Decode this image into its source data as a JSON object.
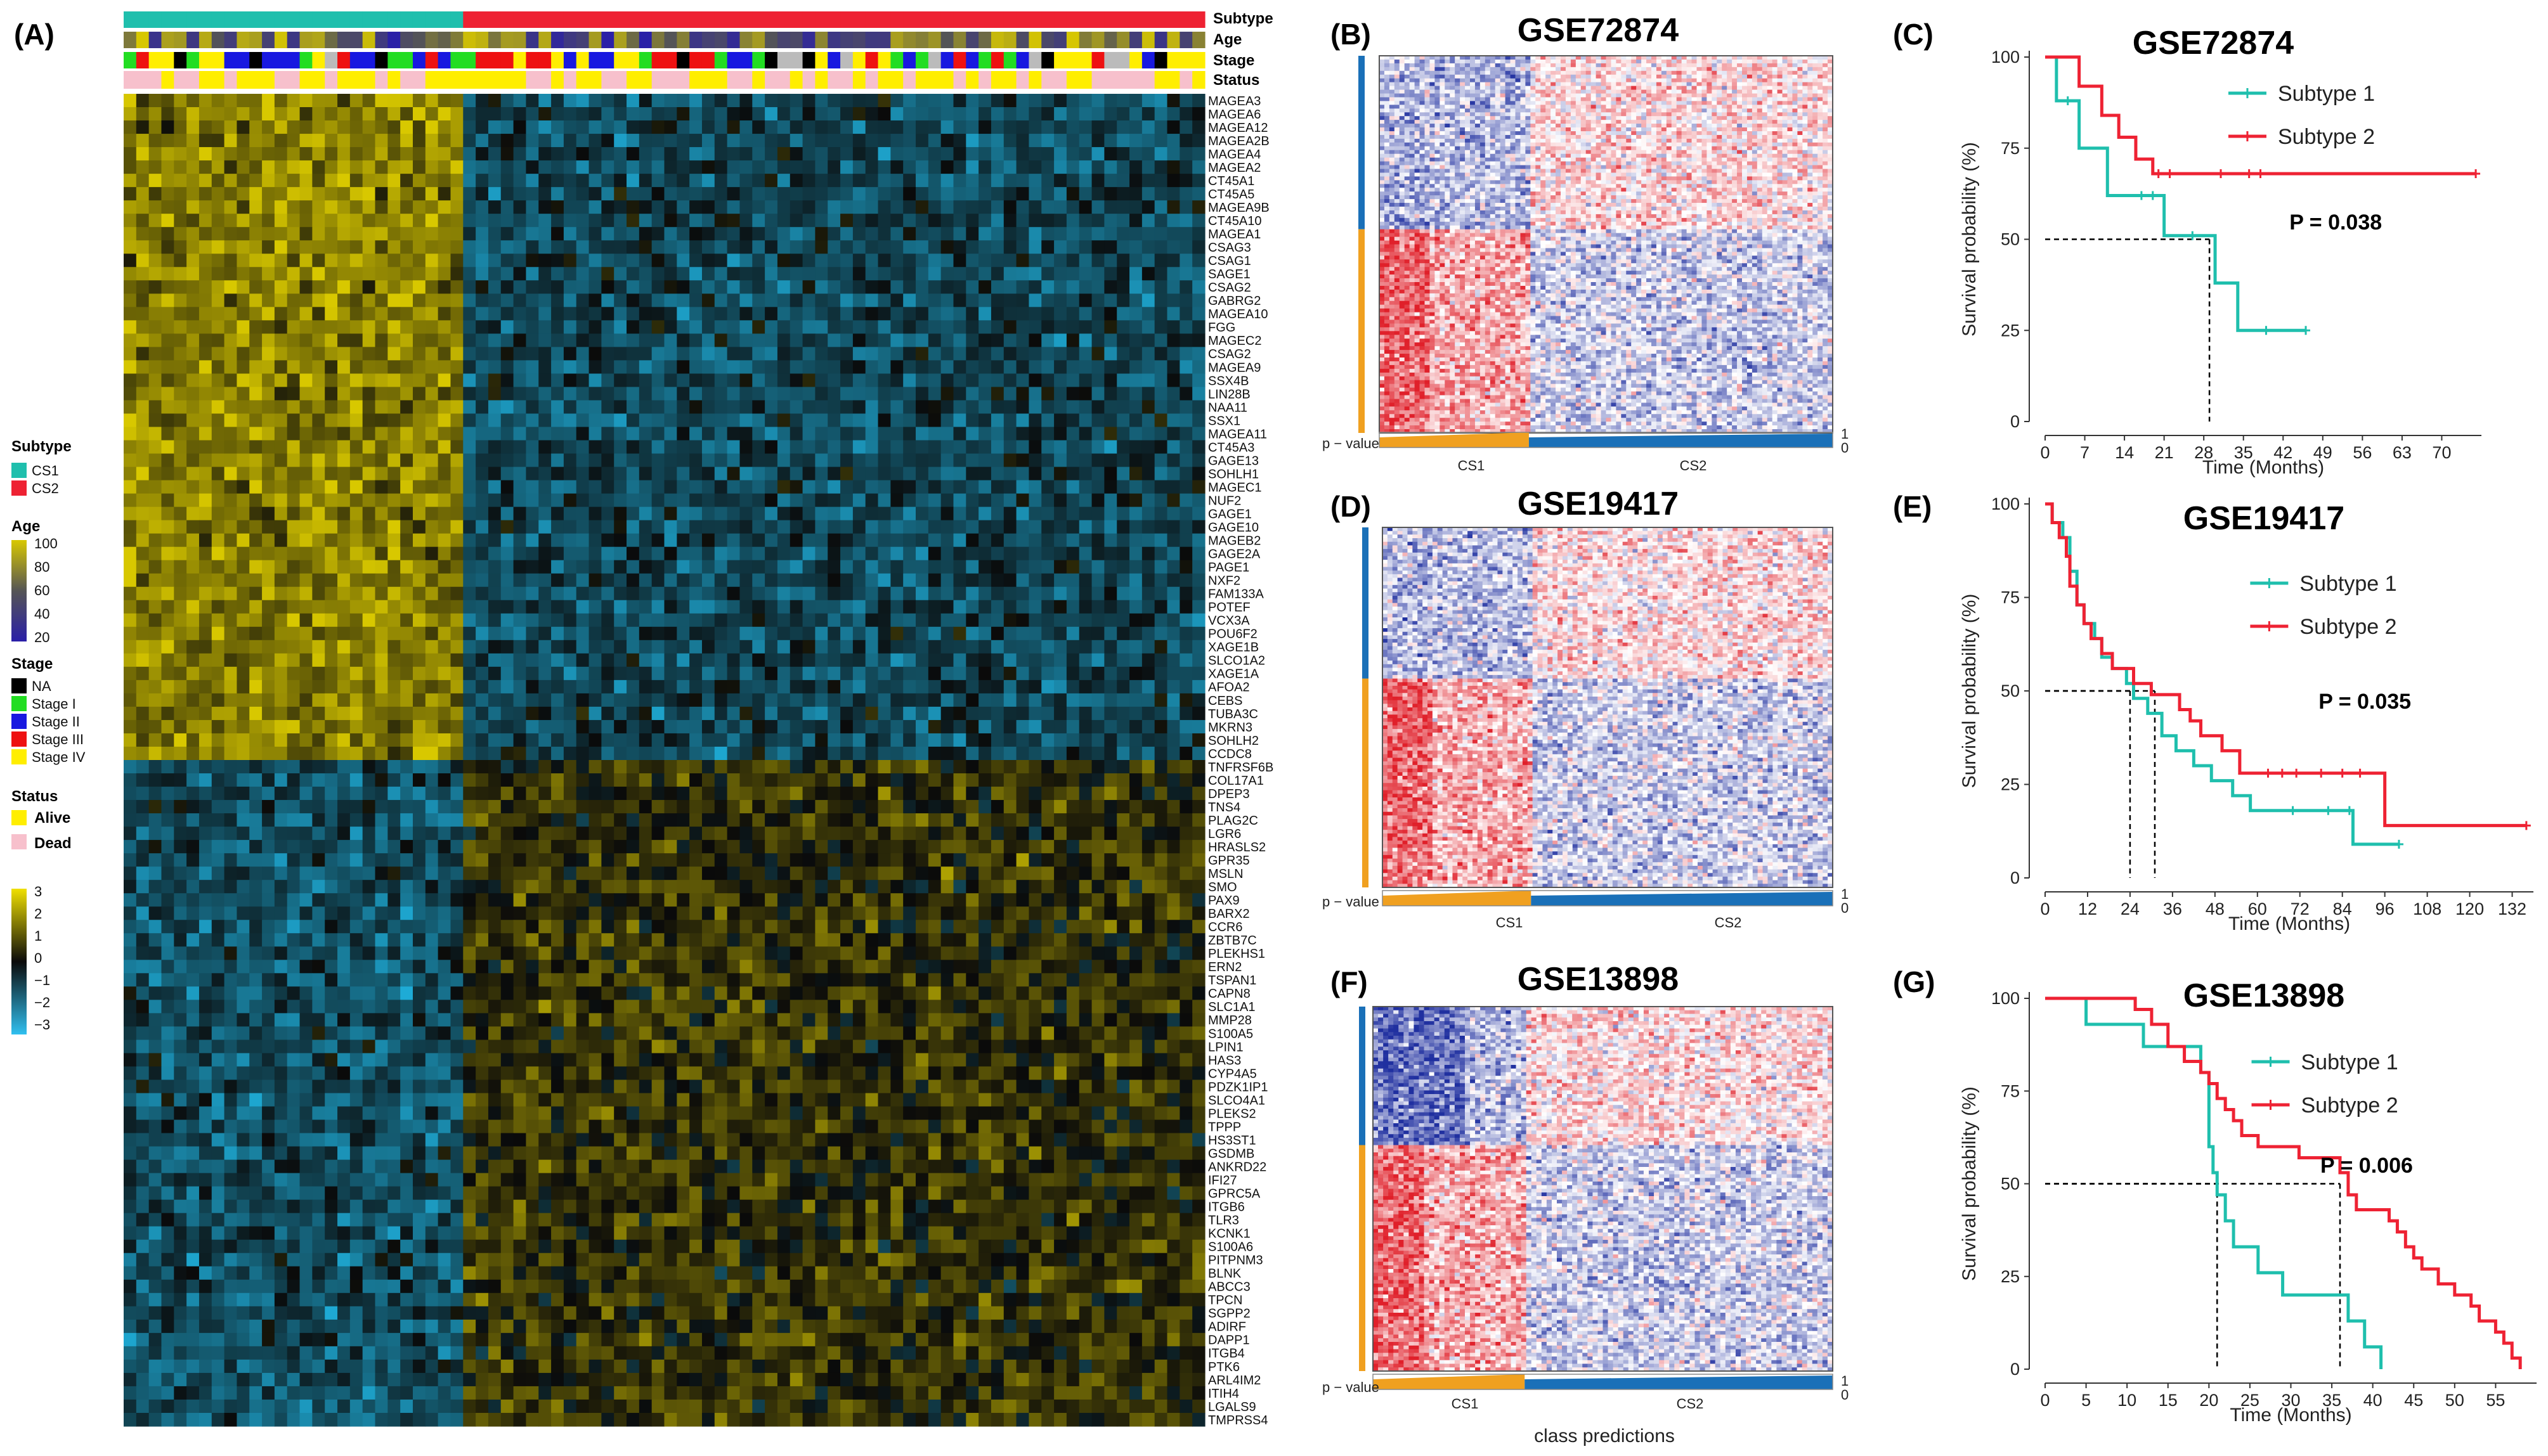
{
  "panel_labels": [
    "(A)",
    "(B)",
    "(C)",
    "(D)",
    "(E)",
    "(F)",
    "(G)"
  ],
  "heatmap_A": {
    "annotation_labels": [
      "Subtype",
      "Age",
      "Stage",
      "Status"
    ],
    "n_samples_cs1": 27,
    "n_samples_cs2": 59,
    "genes": [
      "MAGEA3",
      "MAGEA6",
      "MAGEA12",
      "MAGEA2B",
      "MAGEA4",
      "MAGEA2",
      "CT45A1",
      "CT45A5",
      "MAGEA9B",
      "CT45A10",
      "MAGEA1",
      "CSAG3",
      "CSAG1",
      "SAGE1",
      "CSAG2",
      "GABRG2",
      "MAGEA10",
      "FGG",
      "MAGEC2",
      "CSAG2",
      "MAGEA9",
      "SSX4B",
      "LIN28B",
      "NAA11",
      "SSX1",
      "MAGEA11",
      "CT45A3",
      "GAGE13",
      "SOHLH1",
      "MAGEC1",
      "NUF2",
      "GAGE1",
      "GAGE10",
      "MAGEB2",
      "GAGE2A",
      "PAGE1",
      "NXF2",
      "FAM133A",
      "POTEF",
      "VCX3A",
      "POU6F2",
      "XAGE1B",
      "SLCO1A2",
      "XAGE1A",
      "AFOA2",
      "CEBS",
      "TUBA3C",
      "MKRN3",
      "SOHLH2",
      "CCDC8",
      "TNFRSF6B",
      "COL17A1",
      "DPEP3",
      "TNS4",
      "PLAG2C",
      "LGR6",
      "HRASLS2",
      "GPR35",
      "MSLN",
      "SMO",
      "PAX9",
      "BARX2",
      "CCR6",
      "ZBTB7C",
      "PLEKHS1",
      "ERN2",
      "TSPAN1",
      "CAPN8",
      "SLC1A1",
      "MMP28",
      "S100A5",
      "LPIN1",
      "HAS3",
      "CYP4A5",
      "PDZK1IP1",
      "SLCO4A1",
      "PLEKS2",
      "TPPP",
      "HS3ST1",
      "GSDMB",
      "ANKRD22",
      "IFI27",
      "GPRC5A",
      "ITGB6",
      "TLR3",
      "KCNK1",
      "S100A6",
      "PITPNM3",
      "BLNK",
      "ABCC3",
      "TPCN",
      "SGPP2",
      "ADIRF",
      "DAPP1",
      "ITGB4",
      "PTK6",
      "ARL4IM2",
      "ITIH4",
      "LGALS9",
      "TMPRSS4"
    ],
    "legend": {
      "subtype": {
        "title": "Subtype",
        "items": [
          "CS1",
          "CS2"
        ]
      },
      "age": {
        "title": "Age",
        "ticks": [
          "100",
          "80",
          "60",
          "40",
          "20"
        ]
      },
      "stage": {
        "title": "Stage",
        "items": [
          "NA",
          "Stage I",
          "Stage II",
          "Stage III",
          "Stage IV"
        ]
      },
      "status": {
        "title": "Status",
        "items": [
          "Alive",
          "Dead"
        ]
      },
      "expression": {
        "ticks": [
          "3",
          "2",
          "1",
          "0",
          "−1",
          "−2",
          "−3"
        ]
      }
    }
  },
  "ntp_panels": [
    {
      "id": "B",
      "title": "GSE72874",
      "pvalue_label": "p − value",
      "class_labels": [
        "CS1",
        "CS2"
      ],
      "scale_ticks": [
        "1",
        "0"
      ]
    },
    {
      "id": "D",
      "title": "GSE19417",
      "pvalue_label": "p − value",
      "class_labels": [
        "CS1",
        "CS2"
      ],
      "scale_ticks": [
        "1",
        "0"
      ]
    },
    {
      "id": "F",
      "title": "GSE13898",
      "pvalue_label": "p − value",
      "class_labels": [
        "CS1",
        "CS2"
      ],
      "scale_ticks": [
        "1",
        "0"
      ]
    }
  ],
  "ntp_xlabel": "class predictions",
  "colors": {
    "cs1": "#1fbfad",
    "cs2": "#ee2233",
    "heat_high": "#d8c800",
    "heat_mid": "#0a0a0a",
    "heat_low": "#1fb3e0",
    "ntp_high": "#e0202a",
    "ntp_low": "#2030a0",
    "ntp_cs1_bar": "#f0a020",
    "ntp_cs2_bar": "#1a70b8"
  },
  "chart_data": [
    {
      "id": "C",
      "type": "line",
      "title": "GSE72874",
      "xlabel": "Time (Months)",
      "ylabel": "Survival probability (%)",
      "xlim": [
        0,
        77
      ],
      "ylim": [
        0,
        100
      ],
      "xticks": [
        0,
        7,
        14,
        21,
        28,
        35,
        42,
        49,
        56,
        63,
        70
      ],
      "yticks": [
        0,
        25,
        50,
        75,
        100
      ],
      "pvalue": "P = 0.038",
      "median_guides": [
        {
          "x": 29,
          "y": 50
        }
      ],
      "series": [
        {
          "name": "Subtype 1",
          "color": "#1fbfad",
          "steps": [
            [
              0,
              100
            ],
            [
              2,
              88
            ],
            [
              5,
              88
            ],
            [
              6,
              75
            ],
            [
              10,
              75
            ],
            [
              11,
              62
            ],
            [
              20,
              62
            ],
            [
              21,
              51
            ],
            [
              26,
              51
            ],
            [
              29,
              51
            ],
            [
              30,
              38
            ],
            [
              33,
              38
            ],
            [
              34,
              25
            ],
            [
              46,
              25
            ]
          ],
          "censor": [
            [
              4,
              88
            ],
            [
              17,
              62
            ],
            [
              19,
              62
            ],
            [
              26,
              51
            ],
            [
              39,
              25
            ],
            [
              46,
              25
            ]
          ]
        },
        {
          "name": "Subtype 2",
          "color": "#ee2233",
          "steps": [
            [
              0,
              100
            ],
            [
              5,
              100
            ],
            [
              6,
              92
            ],
            [
              9,
              92
            ],
            [
              10,
              84
            ],
            [
              12,
              84
            ],
            [
              13,
              78
            ],
            [
              15,
              78
            ],
            [
              16,
              72
            ],
            [
              18,
              72
            ],
            [
              19,
              68
            ],
            [
              76,
              68
            ]
          ],
          "censor": [
            [
              20,
              68
            ],
            [
              22,
              68
            ],
            [
              31,
              68
            ],
            [
              36,
              68
            ],
            [
              38,
              68
            ],
            [
              76,
              68
            ]
          ]
        }
      ]
    },
    {
      "id": "E",
      "type": "line",
      "title": "GSE19417",
      "xlabel": "Time (Months)",
      "ylabel": "Survival probability (%)",
      "xlim": [
        0,
        138
      ],
      "ylim": [
        0,
        100
      ],
      "xticks": [
        0,
        12,
        24,
        36,
        48,
        60,
        72,
        84,
        96,
        108,
        120,
        132
      ],
      "yticks": [
        0,
        25,
        50,
        75,
        100
      ],
      "pvalue": "P = 0.035",
      "median_guides": [
        {
          "x": 24,
          "y": 50
        },
        {
          "x": 31,
          "y": 50
        }
      ],
      "series": [
        {
          "name": "Subtype 1",
          "color": "#1fbfad",
          "steps": [
            [
              0,
              100
            ],
            [
              2,
              95
            ],
            [
              5,
              91
            ],
            [
              7,
              82
            ],
            [
              9,
              73
            ],
            [
              11,
              68
            ],
            [
              14,
              64
            ],
            [
              16,
              59
            ],
            [
              19,
              56
            ],
            [
              23,
              52
            ],
            [
              25,
              48
            ],
            [
              29,
              44
            ],
            [
              33,
              38
            ],
            [
              37,
              34
            ],
            [
              42,
              30
            ],
            [
              47,
              26
            ],
            [
              53,
              22
            ],
            [
              58,
              18
            ],
            [
              82,
              18
            ],
            [
              87,
              9
            ],
            [
              100,
              9
            ]
          ],
          "censor": [
            [
              70,
              18
            ],
            [
              80,
              18
            ],
            [
              86,
              18
            ],
            [
              100,
              9
            ]
          ]
        },
        {
          "name": "Subtype 2",
          "color": "#ee2233",
          "steps": [
            [
              0,
              100
            ],
            [
              2,
              95
            ],
            [
              4,
              91
            ],
            [
              6,
              86
            ],
            [
              7,
              78
            ],
            [
              9,
              73
            ],
            [
              11,
              68
            ],
            [
              13,
              64
            ],
            [
              16,
              60
            ],
            [
              19,
              56
            ],
            [
              24,
              56
            ],
            [
              25,
              52
            ],
            [
              30,
              49
            ],
            [
              37,
              49
            ],
            [
              38,
              45
            ],
            [
              41,
              42
            ],
            [
              44,
              38
            ],
            [
              50,
              34
            ],
            [
              55,
              28
            ],
            [
              95,
              28
            ],
            [
              96,
              14
            ],
            [
              136,
              14
            ]
          ],
          "censor": [
            [
              63,
              28
            ],
            [
              67,
              28
            ],
            [
              71,
              28
            ],
            [
              78,
              28
            ],
            [
              84,
              28
            ],
            [
              89,
              28
            ],
            [
              136,
              14
            ]
          ]
        }
      ]
    },
    {
      "id": "G",
      "type": "line",
      "title": "GSE13898",
      "xlabel": "Time (Months)",
      "ylabel": "Survival probability (%)",
      "xlim": [
        0,
        60
      ],
      "ylim": [
        0,
        100
      ],
      "xticks": [
        0,
        5,
        10,
        15,
        20,
        25,
        30,
        35,
        40,
        45,
        50,
        55
      ],
      "yticks": [
        0,
        25,
        50,
        75,
        100
      ],
      "pvalue": "P = 0.006",
      "median_guides": [
        {
          "x": 21,
          "y": 50
        },
        {
          "x": 36,
          "y": 50
        }
      ],
      "series": [
        {
          "name": "Subtype 1",
          "color": "#1fbfad",
          "steps": [
            [
              0,
              100
            ],
            [
              4,
              100
            ],
            [
              5,
              93
            ],
            [
              11,
              93
            ],
            [
              12,
              87
            ],
            [
              18,
              87
            ],
            [
              19,
              80
            ],
            [
              20,
              60
            ],
            [
              20.5,
              53
            ],
            [
              21,
              47
            ],
            [
              22,
              40
            ],
            [
              23,
              33
            ],
            [
              26,
              26
            ],
            [
              29,
              20
            ],
            [
              36,
              20
            ],
            [
              37,
              13
            ],
            [
              39,
              6
            ],
            [
              41,
              0
            ]
          ],
          "censor": []
        },
        {
          "name": "Subtype 2",
          "color": "#ee2233",
          "steps": [
            [
              0,
              100
            ],
            [
              10,
              100
            ],
            [
              11,
              97
            ],
            [
              13,
              93
            ],
            [
              15,
              87
            ],
            [
              17,
              83
            ],
            [
              19,
              80
            ],
            [
              20,
              77
            ],
            [
              21,
              73
            ],
            [
              22,
              70
            ],
            [
              23,
              67
            ],
            [
              24,
              63
            ],
            [
              26,
              60
            ],
            [
              30,
              60
            ],
            [
              31,
              57
            ],
            [
              35,
              57
            ],
            [
              36,
              53
            ],
            [
              37,
              47
            ],
            [
              38,
              43
            ],
            [
              41,
              43
            ],
            [
              42,
              40
            ],
            [
              43,
              37
            ],
            [
              44,
              33
            ],
            [
              45,
              30
            ],
            [
              46,
              27
            ],
            [
              48,
              23
            ],
            [
              50,
              20
            ],
            [
              52,
              17
            ],
            [
              53,
              13
            ],
            [
              55,
              10
            ],
            [
              56,
              7
            ],
            [
              57,
              3
            ],
            [
              58,
              0
            ]
          ],
          "censor": []
        }
      ]
    }
  ]
}
